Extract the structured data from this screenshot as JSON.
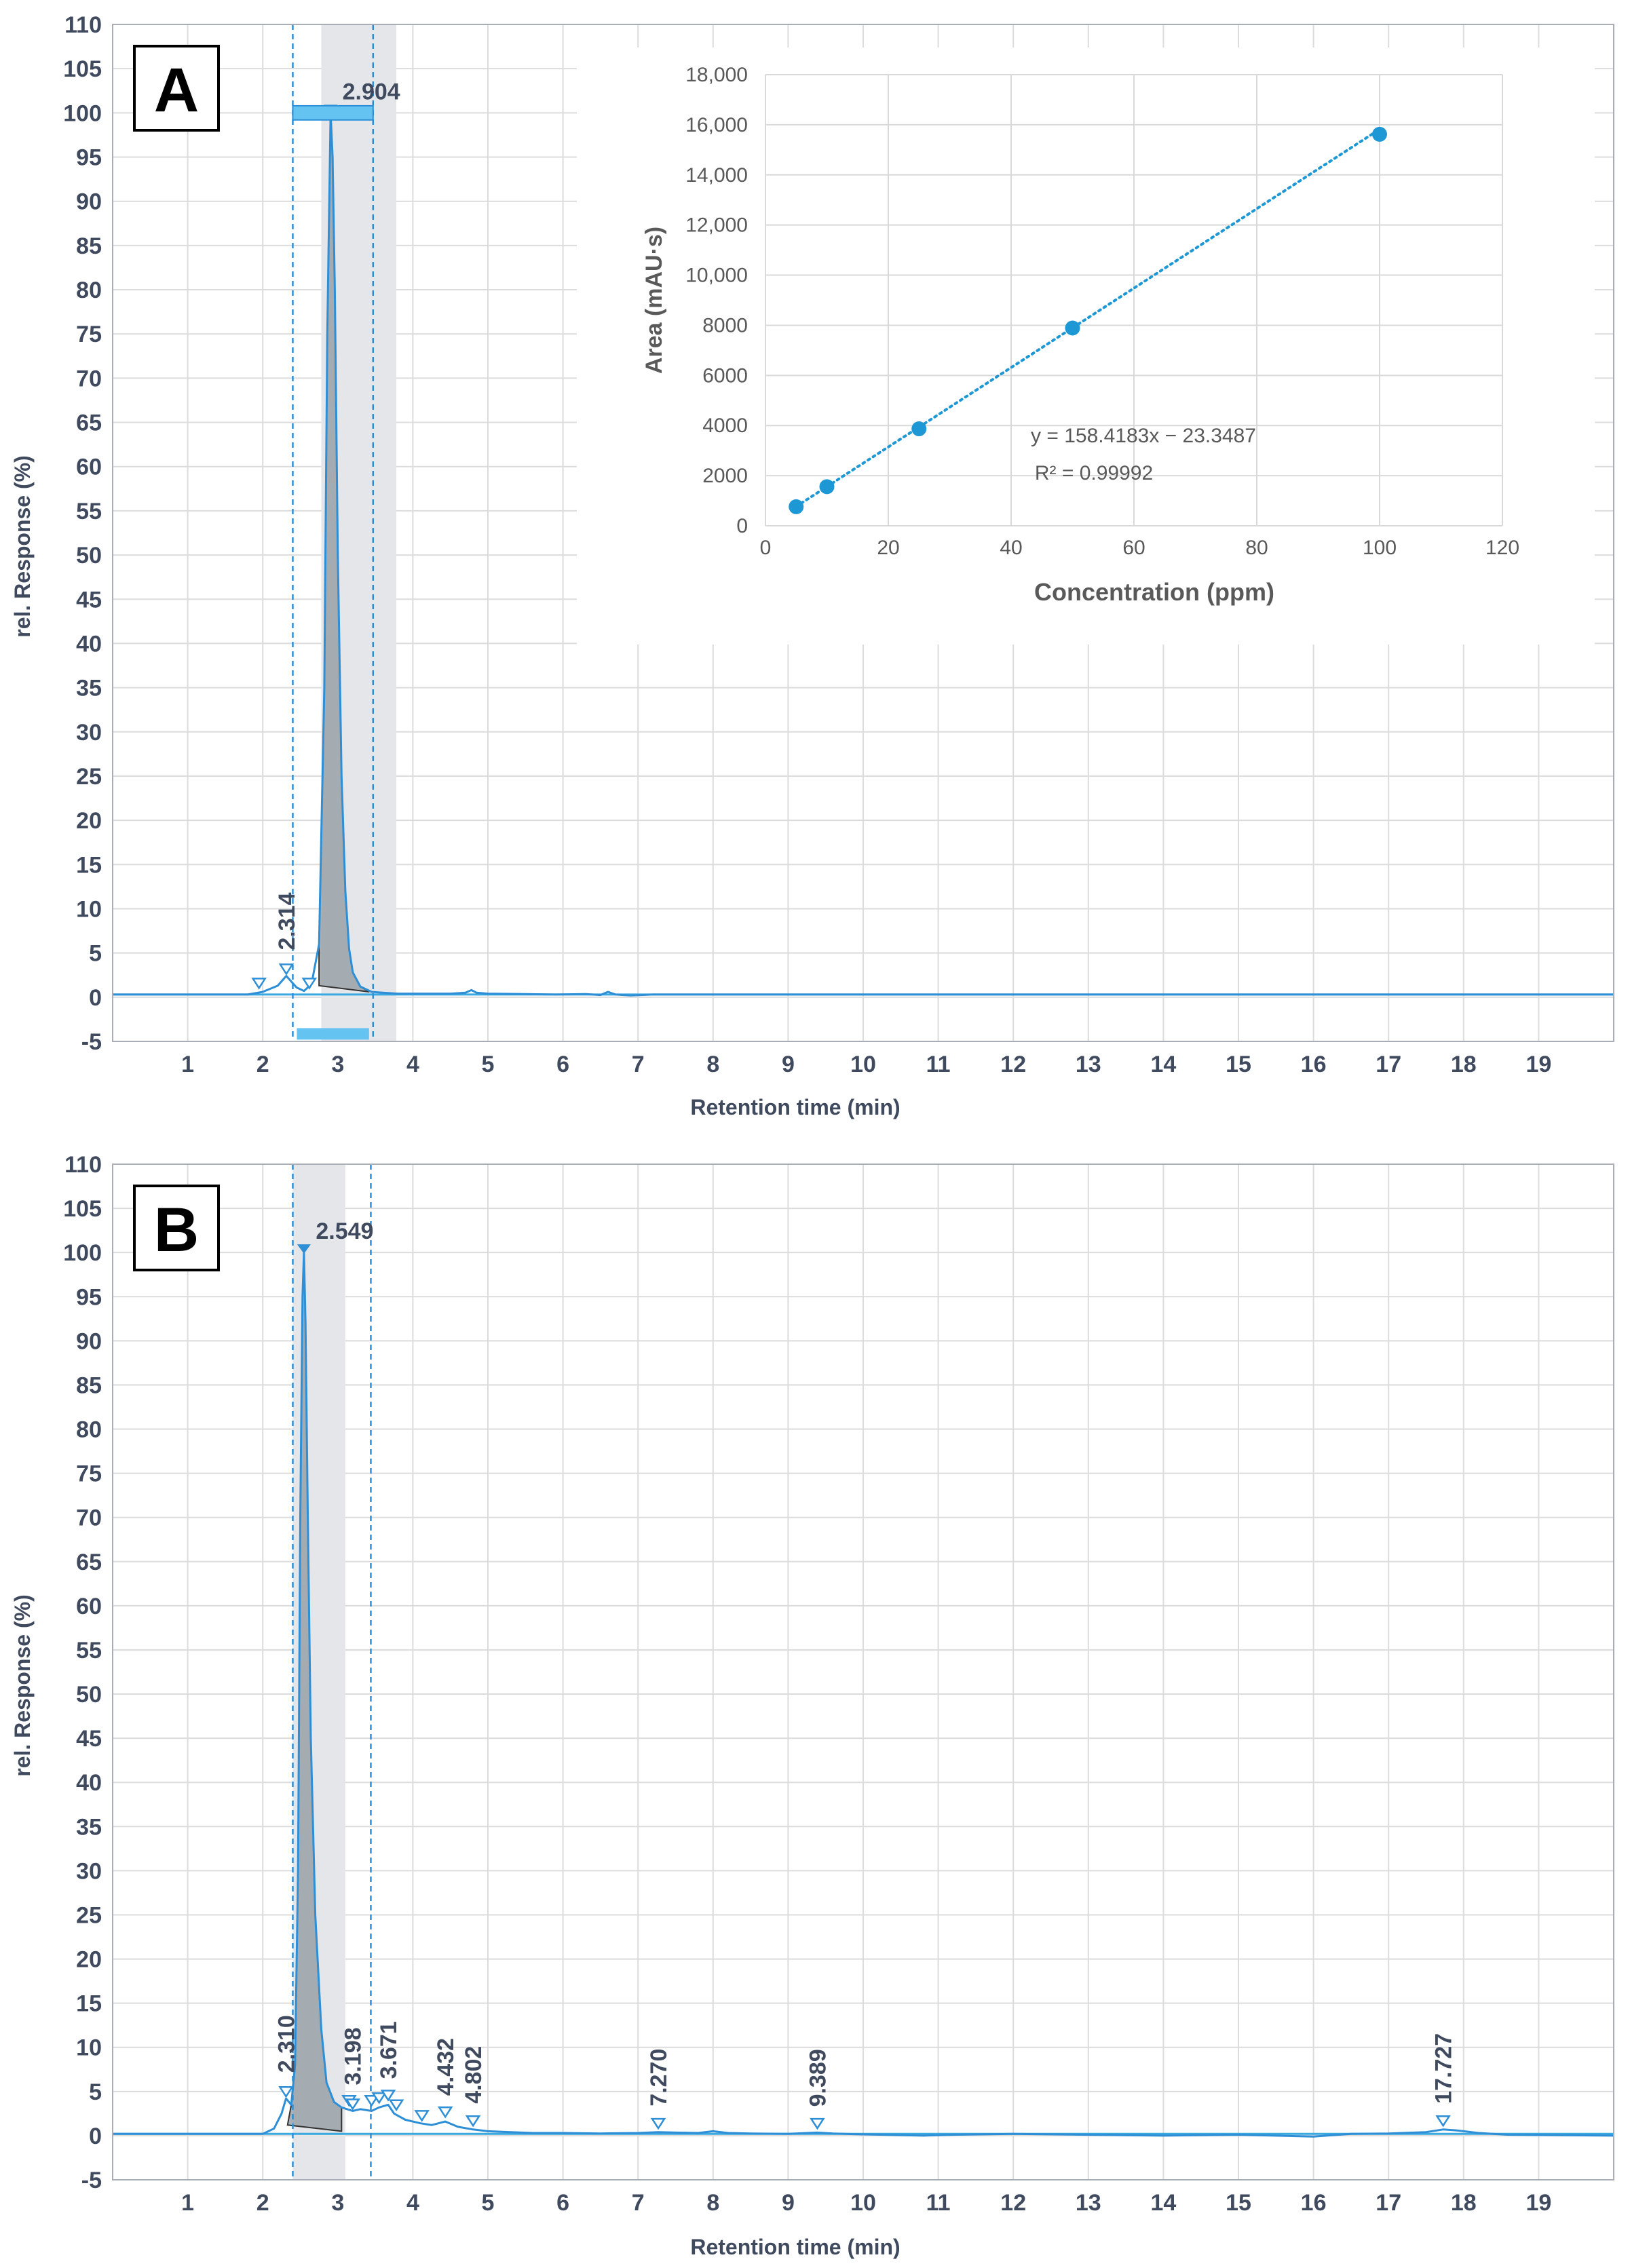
{
  "chart_data": [
    {
      "panel": "A",
      "type": "line",
      "xlabel": "Retention time (min)",
      "ylabel": "rel. Response (%)",
      "xlim": [
        0,
        20
      ],
      "ylim": [
        -5,
        110
      ],
      "xticks": [
        "1",
        "2",
        "3",
        "4",
        "5",
        "6",
        "7",
        "8",
        "9",
        "10",
        "11",
        "12",
        "13",
        "14",
        "15",
        "16",
        "17",
        "18",
        "19"
      ],
      "yticks": [
        "-5",
        "0",
        "5",
        "10",
        "15",
        "20",
        "25",
        "30",
        "35",
        "40",
        "45",
        "50",
        "55",
        "60",
        "65",
        "70",
        "75",
        "80",
        "85",
        "90",
        "95",
        "100",
        "105",
        "110"
      ],
      "grid": true,
      "baseline": 0.3,
      "trace_x": [
        0,
        1.8,
        2.0,
        2.2,
        2.314,
        2.45,
        2.55,
        2.65,
        2.75,
        2.82,
        2.86,
        2.904,
        2.93,
        2.96,
        3.0,
        3.05,
        3.1,
        3.15,
        3.2,
        3.3,
        3.45,
        3.6,
        3.8,
        4.5,
        4.7,
        4.78,
        4.85,
        5.0,
        5.9,
        6.3,
        6.5,
        6.6,
        6.7,
        6.9,
        7.2,
        20
      ],
      "trace_y": [
        0.3,
        0.3,
        0.6,
        1.3,
        2.4,
        1.1,
        0.7,
        1.5,
        6,
        35,
        75,
        100,
        95,
        80,
        50,
        25,
        12,
        5.5,
        2.8,
        1.2,
        0.6,
        0.5,
        0.4,
        0.4,
        0.5,
        0.8,
        0.5,
        0.4,
        0.3,
        0.35,
        0.25,
        0.6,
        0.3,
        0.2,
        0.3,
        0.3
      ],
      "peaks": [
        {
          "rt": 2.314,
          "label": "2.314",
          "height": 2.4
        },
        {
          "rt": 2.904,
          "label": "2.904",
          "height": 100
        }
      ],
      "markers": [
        {
          "rt": 1.95,
          "y": 0.8
        },
        {
          "rt": 2.314,
          "y": 2.4
        },
        {
          "rt": 2.62,
          "y": 0.8
        }
      ],
      "peak_area": {
        "from": 2.75,
        "to": 3.42
      },
      "shaded_window": [
        2.78,
        3.78
      ],
      "window_lines": [
        2.4,
        3.47
      ]
    },
    {
      "panel": "B",
      "type": "line",
      "xlabel": "Retention time (min)",
      "ylabel": "rel. Response (%)",
      "xlim": [
        0,
        20
      ],
      "ylim": [
        -5,
        110
      ],
      "xticks": [
        "1",
        "2",
        "3",
        "4",
        "5",
        "6",
        "7",
        "8",
        "9",
        "10",
        "11",
        "12",
        "13",
        "14",
        "15",
        "16",
        "17",
        "18",
        "19"
      ],
      "yticks": [
        "-5",
        "0",
        "5",
        "10",
        "15",
        "20",
        "25",
        "30",
        "35",
        "40",
        "45",
        "50",
        "55",
        "60",
        "65",
        "70",
        "75",
        "80",
        "85",
        "90",
        "95",
        "100",
        "105",
        "110"
      ],
      "grid": true,
      "baseline": 0.2,
      "trace_x": [
        0,
        2.0,
        2.15,
        2.25,
        2.31,
        2.38,
        2.43,
        2.47,
        2.5,
        2.53,
        2.549,
        2.57,
        2.6,
        2.64,
        2.7,
        2.78,
        2.85,
        2.95,
        3.05,
        3.198,
        3.3,
        3.45,
        3.55,
        3.671,
        3.75,
        3.9,
        4.1,
        4.25,
        4.432,
        4.6,
        4.802,
        5.0,
        5.3,
        5.6,
        6.0,
        6.5,
        7.0,
        7.27,
        7.5,
        7.8,
        8.0,
        8.2,
        8.5,
        9.0,
        9.389,
        9.6,
        10.0,
        10.8,
        11.2,
        12.0,
        13.0,
        14.0,
        15.0,
        16.0,
        16.5,
        17.0,
        17.5,
        17.727,
        17.9,
        18.2,
        18.6,
        20
      ],
      "trace_y": [
        0.2,
        0.2,
        0.8,
        2.5,
        4.2,
        3.5,
        8,
        30,
        70,
        95,
        100,
        92,
        70,
        45,
        25,
        12,
        6,
        3.8,
        3.2,
        2.8,
        3.0,
        2.8,
        3.2,
        3.5,
        2.5,
        1.8,
        1.4,
        1.2,
        1.6,
        1.0,
        0.7,
        0.5,
        0.4,
        0.3,
        0.3,
        0.25,
        0.3,
        0.4,
        0.35,
        0.3,
        0.5,
        0.3,
        0.25,
        0.2,
        0.35,
        0.25,
        0.15,
        0.0,
        0.1,
        0.2,
        0.1,
        0.0,
        0.1,
        -0.1,
        0.2,
        0.25,
        0.4,
        0.7,
        0.6,
        0.3,
        0.1,
        0.0
      ],
      "peaks": [
        {
          "rt": 2.31,
          "label": "2.310",
          "height": 4.2
        },
        {
          "rt": 2.549,
          "label": "2.549",
          "height": 100
        },
        {
          "rt": 3.198,
          "label": "3.198",
          "height": 2.8
        },
        {
          "rt": 3.671,
          "label": "3.671",
          "height": 3.5
        },
        {
          "rt": 4.432,
          "label": "4.432",
          "height": 1.6
        },
        {
          "rt": 4.802,
          "label": "4.802",
          "height": 0.7
        },
        {
          "rt": 7.27,
          "label": "7.270",
          "height": 0.4
        },
        {
          "rt": 9.389,
          "label": "9.389",
          "height": 0.35
        },
        {
          "rt": 17.727,
          "label": "17.727",
          "height": 0.7
        }
      ],
      "markers": [
        {
          "rt": 2.31,
          "y": 4.2
        },
        {
          "rt": 3.15,
          "y": 3.2
        },
        {
          "rt": 3.198,
          "y": 2.8
        },
        {
          "rt": 3.45,
          "y": 3.2
        },
        {
          "rt": 3.55,
          "y": 3.5
        },
        {
          "rt": 3.671,
          "y": 3.8
        },
        {
          "rt": 3.78,
          "y": 2.7
        },
        {
          "rt": 4.12,
          "y": 1.5
        },
        {
          "rt": 4.432,
          "y": 1.9
        },
        {
          "rt": 4.802,
          "y": 0.9
        },
        {
          "rt": 7.27,
          "y": 0.6
        },
        {
          "rt": 9.389,
          "y": 0.6
        },
        {
          "rt": 17.727,
          "y": 0.9
        }
      ],
      "peak_area": {
        "from": 2.33,
        "to": 3.05
      },
      "shaded_window": [
        2.4,
        3.1
      ],
      "window_lines": [
        2.4,
        3.44
      ]
    },
    {
      "panel": "A-inset",
      "type": "scatter",
      "xlabel": "Concentration (ppm)",
      "ylabel": "Area (mAU·s)",
      "xlim": [
        0,
        120
      ],
      "ylim": [
        0,
        18000
      ],
      "xticks": [
        "0",
        "20",
        "40",
        "60",
        "80",
        "100",
        "120"
      ],
      "yticks": [
        "0",
        "2000",
        "4000",
        "6000",
        "8000",
        "10,000",
        "12,000",
        "14,000",
        "16,000",
        "18,000"
      ],
      "grid": true,
      "x": [
        5,
        10,
        25,
        50,
        100
      ],
      "y": [
        760,
        1560,
        3870,
        7890,
        15620
      ],
      "trendline": {
        "type": "linear",
        "slope": 158.4183,
        "intercept": -23.3487,
        "style": "dotted"
      },
      "equation": "y = 158.4183x − 23.3487",
      "r2": "R² = 0.99992"
    }
  ],
  "panel_labels": [
    "A",
    "B"
  ],
  "colors": {
    "trace": "#2e8fd6",
    "baseline": "#3aa9e0",
    "fill": "#8f979d",
    "window": "#e4e6ea",
    "grid": "#dcdcdc",
    "axis_text": "#404a5e",
    "band": "#64c3f0",
    "inset_point": "#1d98d4",
    "inset_text": "#595959"
  }
}
